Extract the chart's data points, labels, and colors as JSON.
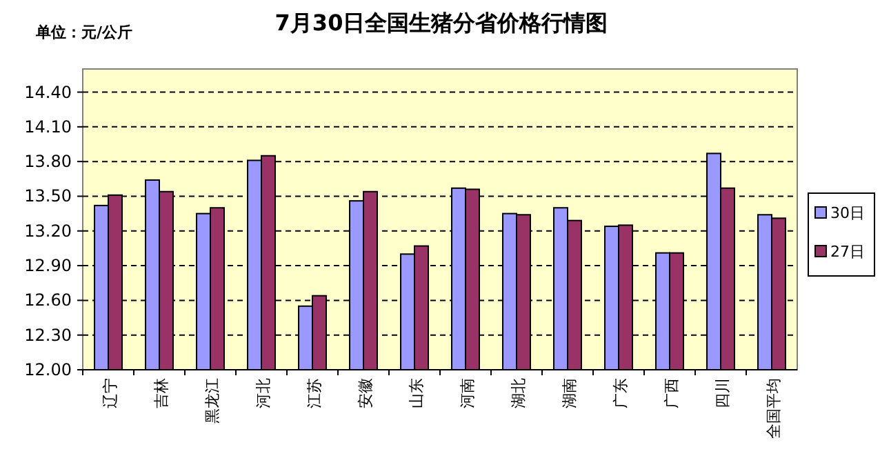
{
  "chart_data": {
    "type": "bar",
    "title": "7月30日全国生猪分省价格行情图",
    "ylabel": "单位：元/公斤",
    "categories": [
      "辽宁",
      "吉林",
      "黑龙江",
      "河北",
      "江苏",
      "安徽",
      "山东",
      "河南",
      "湖北",
      "湖南",
      "广东",
      "广西",
      "四川",
      "全国平均"
    ],
    "series": [
      {
        "name": "30日",
        "color": "#9999ff",
        "values": [
          13.42,
          13.64,
          13.35,
          13.81,
          12.55,
          13.46,
          13.0,
          13.57,
          13.35,
          13.4,
          13.24,
          13.01,
          13.87,
          13.34
        ]
      },
      {
        "name": "27日",
        "color": "#993366",
        "values": [
          13.51,
          13.54,
          13.4,
          13.85,
          12.64,
          13.54,
          13.07,
          13.56,
          13.34,
          13.29,
          13.25,
          13.01,
          13.57,
          13.31
        ]
      }
    ],
    "ylim": [
      12.0,
      14.6
    ],
    "yticks": [
      {
        "value": 12.0,
        "label": "12.00"
      },
      {
        "value": 12.3,
        "label": "12.30"
      },
      {
        "value": 12.6,
        "label": "12.60"
      },
      {
        "value": 12.9,
        "label": "12.90"
      },
      {
        "value": 13.2,
        "label": "13.20"
      },
      {
        "value": 13.5,
        "label": "13.50"
      },
      {
        "value": 13.8,
        "label": "13.80"
      },
      {
        "value": 14.1,
        "label": "14.10"
      },
      {
        "value": 14.4,
        "label": "14.40"
      }
    ],
    "grid": "y",
    "legend": "right"
  }
}
